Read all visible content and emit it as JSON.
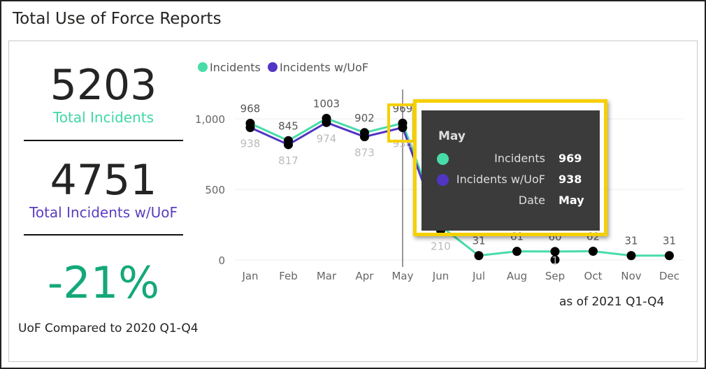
{
  "title": "Total Use of Force Reports",
  "kpis": {
    "total_incidents": {
      "value": "5203",
      "label": "Total Incidents",
      "color": "#3fd8a6"
    },
    "total_uof": {
      "value": "4751",
      "label": "Total Incidents w/UoF",
      "color": "#5b3ec0"
    },
    "change": {
      "value": "-21%",
      "label": "UoF Compared to 2020 Q1-Q4",
      "color": "#14a87a"
    }
  },
  "as_of": "as of 2021 Q1-Q4",
  "chart_data": {
    "type": "line",
    "categories": [
      "Jan",
      "Feb",
      "Mar",
      "Apr",
      "May",
      "Jun",
      "Jul",
      "Aug",
      "Sep",
      "Oct",
      "Nov",
      "Dec"
    ],
    "series": [
      {
        "name": "Incidents",
        "color": "#48dca8",
        "values": [
          968,
          845,
          1003,
          902,
          969,
          240,
          31,
          61,
          60,
          62,
          31,
          31
        ]
      },
      {
        "name": "Incidents w/UoF",
        "color": "#5135c4",
        "values": [
          938,
          817,
          974,
          873,
          938,
          210,
          null,
          null,
          1,
          null,
          null,
          null
        ]
      }
    ],
    "yticks": [
      "0",
      "500",
      "1,000"
    ],
    "ytick_values": [
      0,
      500,
      1000
    ],
    "ylim": [
      0,
      1000
    ],
    "legend": "top-left",
    "grid": true,
    "hover_category": "May"
  },
  "tooltip": {
    "title": "May",
    "rows": [
      {
        "label": "Incidents",
        "value": "969",
        "color": "#48dca8"
      },
      {
        "label": "Incidents w/UoF",
        "value": "938",
        "color": "#5135c4"
      },
      {
        "label": "Date",
        "value": "May"
      }
    ]
  }
}
